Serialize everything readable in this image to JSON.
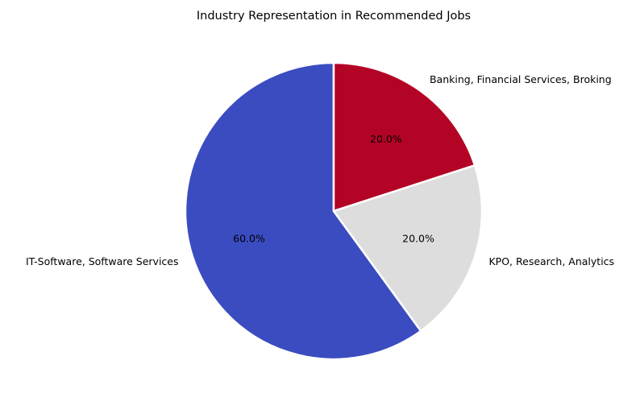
{
  "chart_data": {
    "type": "pie",
    "title": "Industry Representation in Recommended Jobs",
    "start_angle_deg": 90,
    "direction": "counterclockwise",
    "slices": [
      {
        "label": "IT-Software, Software Services",
        "value": 60.0,
        "pct_label": "60.0%",
        "color": "#3b4cc0"
      },
      {
        "label": "KPO, Research, Analytics",
        "value": 20.0,
        "pct_label": "20.0%",
        "color": "#dddddd"
      },
      {
        "label": "Banking, Financial Services, Broking",
        "value": 20.0,
        "pct_label": "20.0%",
        "color": "#b40426"
      }
    ],
    "edge_color": "#ffffff"
  }
}
